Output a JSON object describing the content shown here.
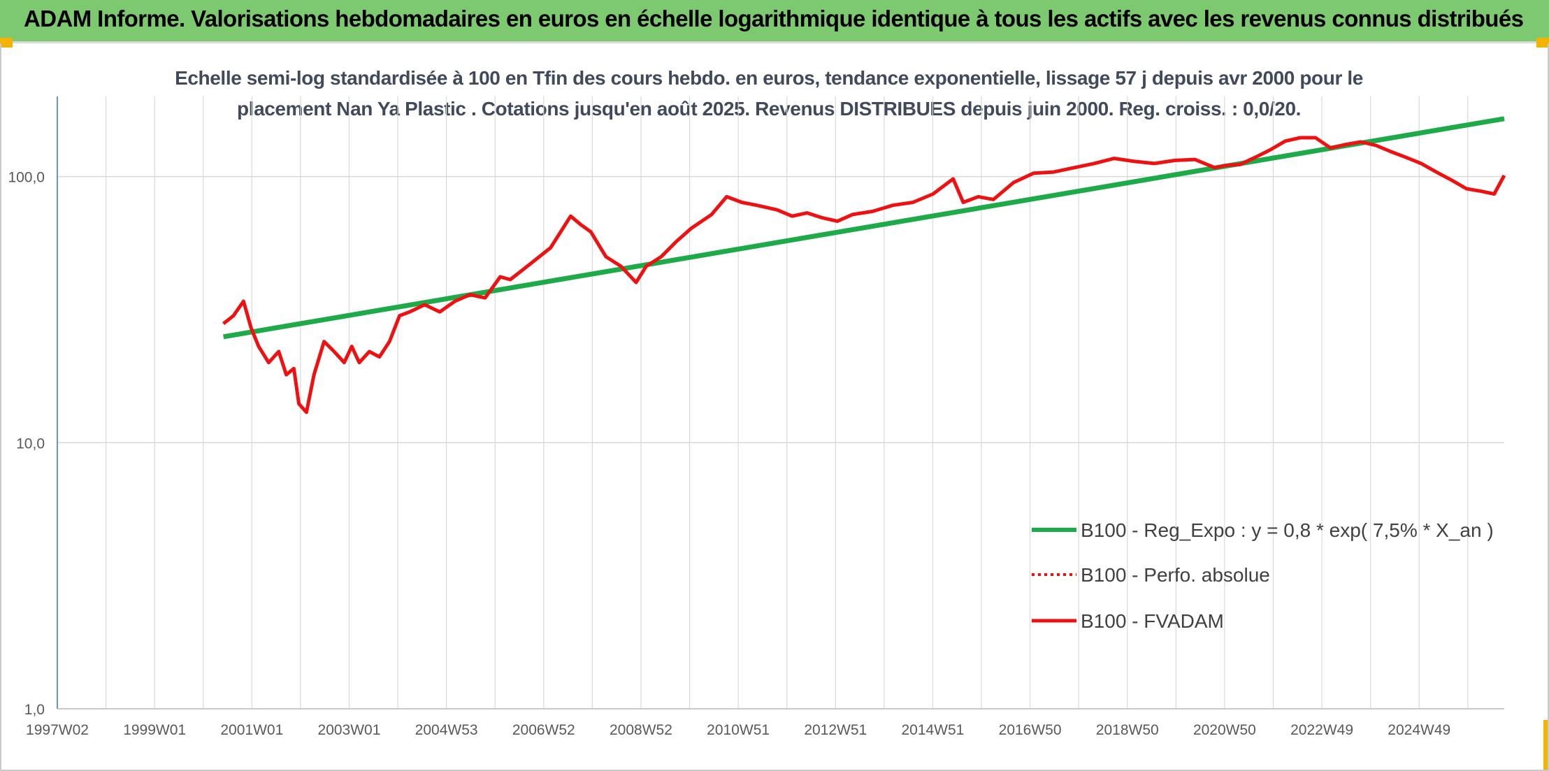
{
  "header": {
    "title": "ADAM Informe. Valorisations hebdomadaires en euros en échelle logarithmique identique à tous les actifs avec les revenus connus distribués"
  },
  "colors": {
    "banner": "#7dc96f",
    "trend": "#1faa4a",
    "fvadam": "#ee1111",
    "perfo": "#ee1111",
    "grid": "#d9d9d9"
  },
  "chart_data": {
    "type": "line",
    "title": "Echelle semi-log standardisée à 100 en Tfin des cours hebdo. en euros, tendance exponentielle, lissage 57 j depuis avr 2000 pour le",
    "subtitle": "placement Nan Ya Plastic . Cotations jusqu'en août 2025. Revenus DISTRIBUES depuis juin 2000. Reg. croiss. : 0,0/20.",
    "xlabel": "",
    "ylabel": "",
    "y_scale": "log",
    "ylim": [
      1,
      200
    ],
    "y_ticks": [
      "1,0",
      "10,0",
      "100,0"
    ],
    "x_ticks": [
      "1997W02",
      "1999W01",
      "2001W01",
      "2003W01",
      "2004W53",
      "2006W52",
      "2008W52",
      "2010W51",
      "2012W51",
      "2014W51",
      "2016W50",
      "2018W50",
      "2020W50",
      "2022W49",
      "2024W49"
    ],
    "xlim": [
      1997.0,
      2025.75
    ],
    "grid": true,
    "legend_position": "bottom-right",
    "series": [
      {
        "name": "B100 - Reg_Expo : y = 0,8 * exp( 7,5% *  X_an )",
        "style": "solid-green",
        "x": [
          2000.3,
          2025.75
        ],
        "y": [
          25,
          165
        ]
      },
      {
        "name": "B100 - Perfo. absolue",
        "style": "dotted-red",
        "x": [],
        "y": []
      },
      {
        "name": "B100 - FVADAM",
        "style": "solid-red",
        "x": [
          2000.3,
          2000.5,
          2000.7,
          2000.85,
          2001.0,
          2001.2,
          2001.4,
          2001.55,
          2001.7,
          2001.8,
          2001.95,
          2002.1,
          2002.3,
          2002.5,
          2002.7,
          2002.85,
          2003.0,
          2003.2,
          2003.4,
          2003.6,
          2003.8,
          2004.0,
          2004.3,
          2004.6,
          2004.9,
          2005.2,
          2005.5,
          2005.8,
          2006.0,
          2006.4,
          2006.8,
          2007.2,
          2007.4,
          2007.6,
          2007.9,
          2008.2,
          2008.5,
          2008.7,
          2009.0,
          2009.3,
          2009.6,
          2010.0,
          2010.3,
          2010.6,
          2010.9,
          2011.3,
          2011.6,
          2011.9,
          2012.2,
          2012.5,
          2012.8,
          2013.2,
          2013.6,
          2014.0,
          2014.4,
          2014.8,
          2015.0,
          2015.3,
          2015.6,
          2016.0,
          2016.4,
          2016.8,
          2017.2,
          2017.6,
          2018.0,
          2018.4,
          2018.8,
          2019.2,
          2019.6,
          2020.0,
          2020.2,
          2020.5,
          2020.8,
          2021.1,
          2021.4,
          2021.7,
          2022.0,
          2022.3,
          2022.6,
          2022.9,
          2023.2,
          2023.5,
          2023.8,
          2024.1,
          2024.4,
          2024.7,
          2025.0,
          2025.3,
          2025.55,
          2025.75
        ],
        "y": [
          28,
          30,
          34,
          27,
          23,
          20,
          22,
          18,
          19,
          14,
          13,
          18,
          24,
          22,
          20,
          23,
          20,
          22,
          21,
          24,
          30,
          31,
          33,
          31,
          34,
          36,
          35,
          42,
          41,
          47,
          54,
          71,
          66,
          62,
          50,
          46,
          40,
          46,
          50,
          57,
          64,
          72,
          84,
          80,
          78,
          75,
          71,
          73,
          70,
          68,
          72,
          74,
          78,
          80,
          86,
          98,
          80,
          84,
          82,
          95,
          103,
          104,
          108,
          112,
          117,
          114,
          112,
          115,
          116,
          108,
          110,
          111,
          118,
          126,
          136,
          140,
          140,
          128,
          132,
          135,
          131,
          124,
          118,
          112,
          104,
          97,
          90,
          88,
          86,
          101
        ]
      }
    ]
  }
}
